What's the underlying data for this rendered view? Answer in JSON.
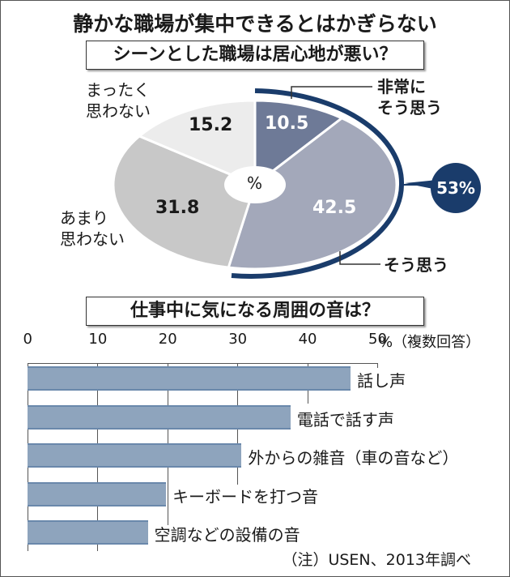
{
  "title": "静かな職場が集中できるとはかぎらない",
  "pie_section": {
    "heading": "シーンとした職場は居心地が悪い？",
    "center_label": "%",
    "badge": "53%",
    "slices": [
      {
        "label_line1": "非常に",
        "label_line2": "そう思う",
        "value": "10.5",
        "color": "#6e7a97"
      },
      {
        "label_line1": "そう思う",
        "label_line2": "",
        "value": "42.5",
        "color": "#a3a8ba"
      },
      {
        "label_line1": "あまり",
        "label_line2": "思わない",
        "value": "31.8",
        "color": "#c8c8c8"
      },
      {
        "label_line1": "まったく",
        "label_line2": "思わない",
        "value": "15.2",
        "color": "#ececec"
      }
    ],
    "accent_color": "#1a3c6b"
  },
  "bar_section": {
    "heading": "仕事中に気になる周囲の音は？",
    "ticks": [
      "0",
      "10",
      "20",
      "30",
      "40",
      "50"
    ],
    "unit": "%（複数回答）",
    "bars": [
      {
        "label": "話し声",
        "value": 46.2
      },
      {
        "label": "電話で話す声",
        "value": 37.6
      },
      {
        "label": "外からの雑音（車の音など）",
        "value": 30.6
      },
      {
        "label": "キーボードを打つ音",
        "value": 19.8
      },
      {
        "label": "空調などの設備の音",
        "value": 17.2
      }
    ],
    "bar_color": "#8ea4bd",
    "note": "（注）USEN、2013年調べ"
  },
  "chart_data": [
    {
      "type": "pie",
      "title": "シーンとした職場は居心地が悪い？",
      "categories": [
        "非常にそう思う",
        "そう思う",
        "あまり思わない",
        "まったく思わない"
      ],
      "values": [
        10.5,
        42.5,
        31.8,
        15.2
      ],
      "unit": "%",
      "annotations": [
        "非常にそう思う＋そう思う = 53%"
      ]
    },
    {
      "type": "bar",
      "orientation": "horizontal",
      "title": "仕事中に気になる周囲の音は？",
      "categories": [
        "話し声",
        "電話で話す声",
        "外からの雑音（車の音など）",
        "キーボードを打つ音",
        "空調などの設備の音"
      ],
      "values": [
        46.2,
        37.6,
        30.6,
        19.8,
        17.2
      ],
      "xlabel": "%（複数回答）",
      "xlim": [
        0,
        50
      ],
      "xticks": [
        0,
        10,
        20,
        30,
        40,
        50
      ],
      "grid": true,
      "note": "（注）USEN、2013年調べ"
    }
  ]
}
